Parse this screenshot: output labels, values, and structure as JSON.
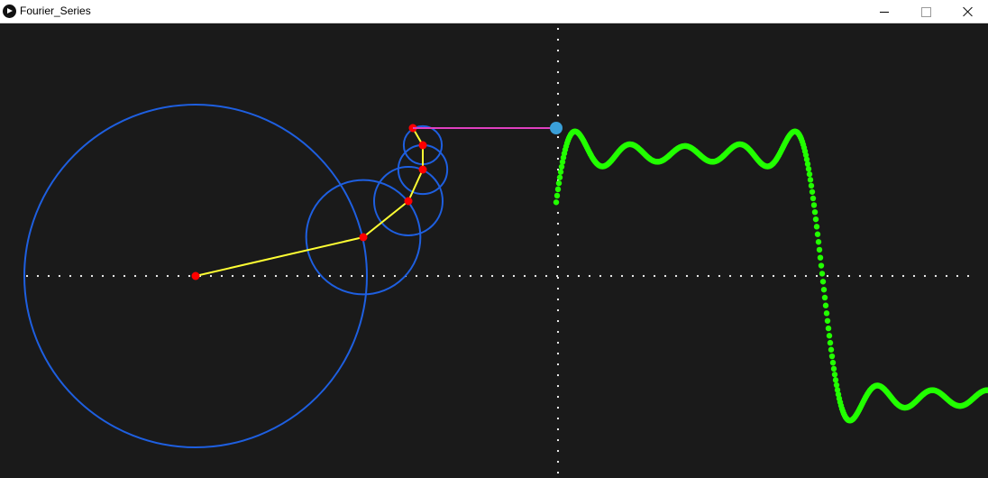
{
  "window": {
    "title": "Fourier_Series",
    "app_icon": "processing-play-icon",
    "controls": {
      "minimize": "minimize-icon",
      "maximize": "maximize-icon",
      "close": "close-icon"
    }
  },
  "colors": {
    "background": "#1a1a1a",
    "axis_dots": "#ffffff",
    "circles": "#1e5fe0",
    "epicycle_arms": "#ffff33",
    "joints": "#ff0000",
    "connector": "#e040c0",
    "tracer": "#3a9fd8",
    "wave": "#22ff00"
  },
  "visualization": {
    "type": "fourier-square-wave-epicycles",
    "harmonics": [
      1,
      3,
      5,
      7,
      9
    ],
    "waveform": "square"
  }
}
